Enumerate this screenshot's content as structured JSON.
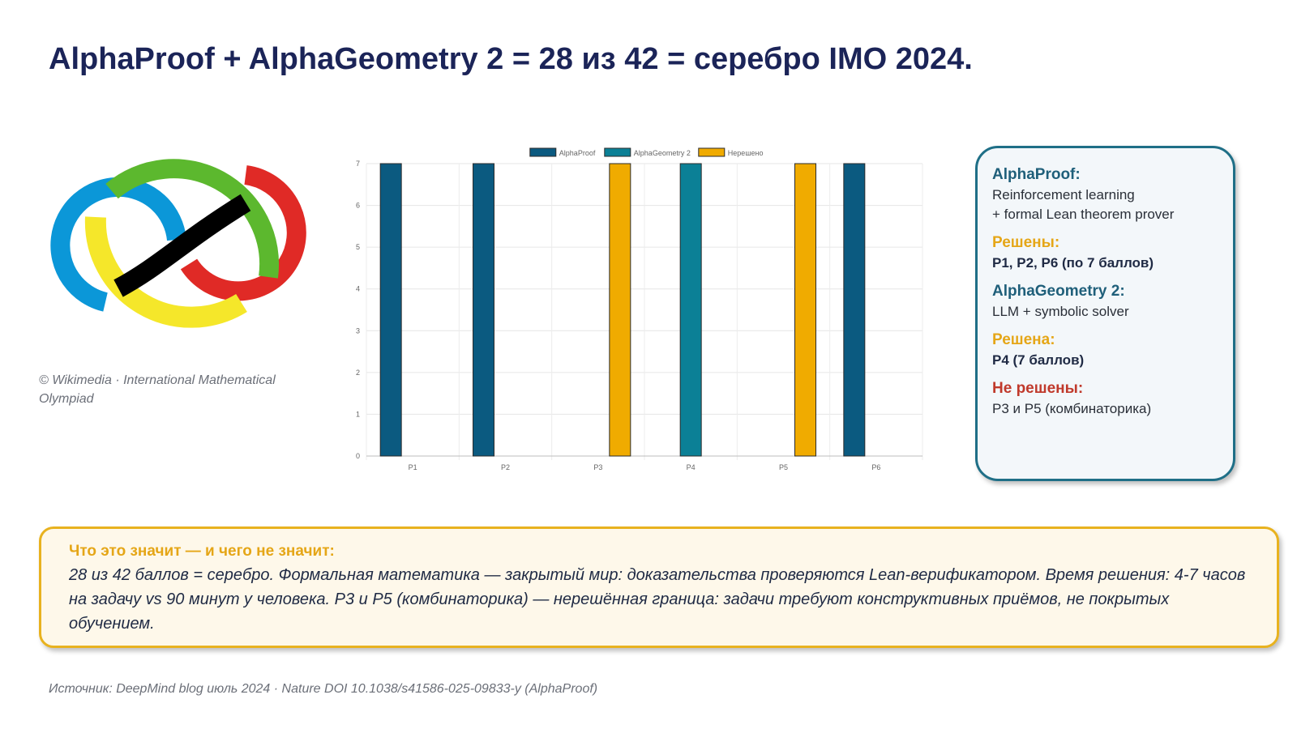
{
  "title": "AlphaProof + AlphaGeometry 2 = 28 из 42 = серебро IMO 2024.",
  "logo": {
    "icon": "imo-infinity-logo-icon",
    "colors": {
      "green": "#5cb82e",
      "blue": "#0b97d8",
      "red": "#e02a26",
      "yellow": "#f5e72a",
      "black": "#000000"
    },
    "credit": "© Wikimedia · International Mathematical Olympiad"
  },
  "info": {
    "alphaproof_head": "AlphaProof:",
    "alphaproof_line1": "Reinforcement learning",
    "alphaproof_line2": "+ formal Lean theorem prover",
    "solved_head": "Решены:",
    "solved_value": "P1, P2, P6 (по 7 баллов)",
    "alphageometry_head": "AlphaGeometry 2:",
    "alphageometry_line": "LLM + symbolic solver",
    "solved_single_head": "Решена:",
    "solved_single_value": "P4 (7 баллов)",
    "unsolved_head": "Не решены:",
    "unsolved_value": "P3 и P5 (комбинаторика)",
    "colors": {
      "head": "#1f5f7a",
      "solved": "#e5a617",
      "unsolved": "#c0392b"
    }
  },
  "note": {
    "head": "Что это значит — и чего не значит:",
    "body": "28 из 42 баллов = серебро. Формальная математика — закрытый мир: доказательства проверяются Lean-верификатором. Время решения: 4-7 часов на задачу vs 90 минут у человека. P3 и P5 (комбинаторика) — нерешённая граница: задачи требуют конструктивных приёмов, не покрытых обучением."
  },
  "source": "Источник: DeepMind blog июль 2024 · Nature DOI 10.1038/s41586-025-09833-y (AlphaProof)",
  "chart_data": {
    "type": "bar",
    "categories": [
      "P1",
      "P2",
      "P3",
      "P4",
      "P5",
      "P6"
    ],
    "series": [
      {
        "name": "AlphaProof",
        "color": "#0b5a80",
        "values": [
          7,
          7,
          0,
          0,
          0,
          7
        ]
      },
      {
        "name": "AlphaGeometry 2",
        "color": "#0b8096",
        "values": [
          0,
          0,
          0,
          7,
          0,
          0
        ]
      },
      {
        "name": "Нерешено",
        "color": "#f0ab00",
        "values": [
          0,
          0,
          7,
          0,
          7,
          0
        ]
      }
    ],
    "ylim": [
      0,
      7
    ],
    "yticks": [
      "0",
      "1",
      "2",
      "3",
      "4",
      "5",
      "6",
      "7"
    ],
    "grid": true,
    "legend": "top-center"
  }
}
